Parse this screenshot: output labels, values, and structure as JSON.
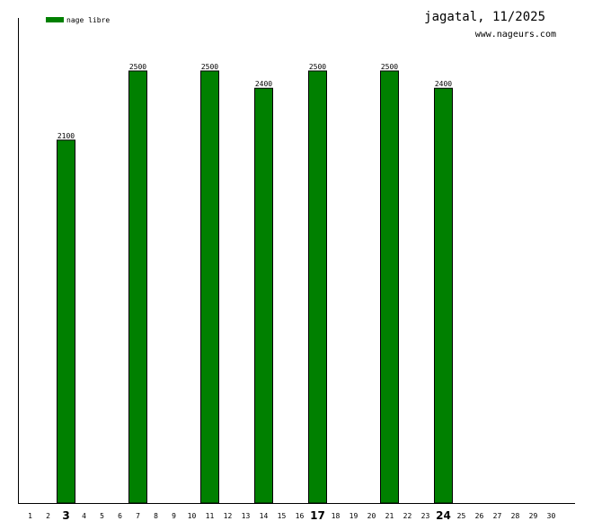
{
  "chart_data": {
    "type": "bar",
    "title": "jagatal, 11/2025",
    "subtitle": "www.nageurs.com",
    "xlabel": "",
    "ylabel": "",
    "categories": [
      "1",
      "2",
      "3",
      "4",
      "5",
      "6",
      "7",
      "8",
      "9",
      "10",
      "11",
      "12",
      "13",
      "14",
      "15",
      "16",
      "17",
      "18",
      "19",
      "20",
      "21",
      "22",
      "23",
      "24",
      "25",
      "26",
      "27",
      "28",
      "29",
      "30"
    ],
    "bold_categories": [
      "3",
      "17",
      "24"
    ],
    "series": [
      {
        "name": "nage libre",
        "color": "#008000",
        "values": [
          null,
          null,
          2100,
          null,
          null,
          null,
          2500,
          null,
          null,
          null,
          2500,
          null,
          null,
          2400,
          null,
          null,
          2500,
          null,
          null,
          null,
          2500,
          null,
          null,
          2400,
          null,
          null,
          null,
          null,
          null,
          null
        ]
      }
    ],
    "ylim": [
      0,
      2520
    ],
    "grid": false,
    "legend_position": "top-left"
  }
}
